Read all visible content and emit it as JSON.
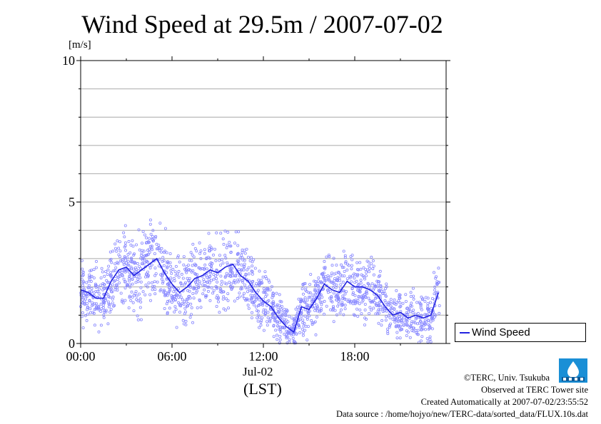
{
  "title": "Wind Speed at 29.5m / 2007-07-02",
  "unit_label": "[m/s]",
  "x_date_label": "Jul-02",
  "x_tz_label": "(LST)",
  "legend": {
    "label": "Wind Speed"
  },
  "footer": {
    "copyright": "©TERC, Univ. Tsukuba",
    "site": "Observed at TERC Tower site",
    "created": "Created Automatically at 2007-07-02/23:55:52",
    "source": "Data source : /home/hojyo/new/TERC-data/sorted_data/FLUX.10s.dat"
  },
  "logo_icon": "terc-logo-icon",
  "colors": {
    "line": "#2222e0",
    "points": "#8888ff",
    "grid": "#aaaaaa"
  },
  "chart_data": {
    "type": "line",
    "title": "Wind Speed at 29.5m / 2007-07-02",
    "ylabel": "[m/s]",
    "xlabel": "Jul-02 (LST)",
    "ylim": [
      0,
      10
    ],
    "xlim_hours": [
      0,
      24
    ],
    "x_ticks": [
      "00:00",
      "06:00",
      "12:00",
      "18:00"
    ],
    "x_tick_hours": [
      0,
      6,
      12,
      18
    ],
    "y_ticks": [
      0,
      5,
      10
    ],
    "grid_y": [
      1,
      2,
      3,
      4,
      5,
      6,
      7,
      8,
      9,
      10
    ],
    "legend_position": "right",
    "series": [
      {
        "name": "Wind Speed",
        "style": "line with scatter of 10s samples",
        "x_hours": [
          0.0,
          0.5,
          1.0,
          1.5,
          2.0,
          2.5,
          3.0,
          3.5,
          4.0,
          4.5,
          5.0,
          5.5,
          6.0,
          6.5,
          7.0,
          7.5,
          8.0,
          8.5,
          9.0,
          9.5,
          10.0,
          10.5,
          11.0,
          11.5,
          12.0,
          12.5,
          13.0,
          13.5,
          14.0,
          14.5,
          15.0,
          15.5,
          16.0,
          16.5,
          17.0,
          17.5,
          18.0,
          18.5,
          19.0,
          19.5,
          20.0,
          20.5,
          21.0,
          21.5,
          22.0,
          22.5,
          23.0,
          23.5
        ],
        "values": [
          1.9,
          1.8,
          1.6,
          1.6,
          2.2,
          2.6,
          2.7,
          2.4,
          2.6,
          2.8,
          3.0,
          2.5,
          2.1,
          1.8,
          2.0,
          2.3,
          2.4,
          2.6,
          2.5,
          2.7,
          2.8,
          2.4,
          2.2,
          1.8,
          1.5,
          1.3,
          0.9,
          0.6,
          0.4,
          1.3,
          1.2,
          1.6,
          2.1,
          1.9,
          1.8,
          2.2,
          2.0,
          2.0,
          1.9,
          1.7,
          1.3,
          1.0,
          1.1,
          0.9,
          1.0,
          0.9,
          1.0,
          1.8
        ]
      }
    ]
  }
}
